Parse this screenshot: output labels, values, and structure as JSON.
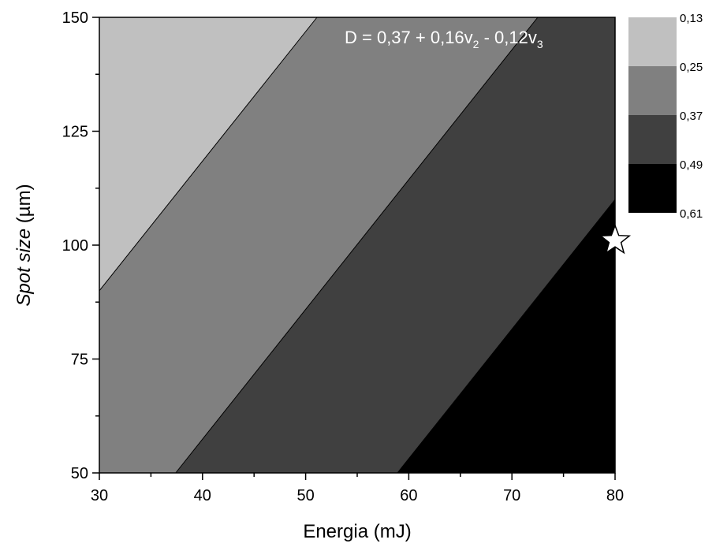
{
  "chart_data": {
    "type": "contour",
    "xlabel": "Energia (mJ)",
    "ylabel_italic": "Spot size",
    "ylabel_unit": " (µm)",
    "xlim": [
      30,
      80
    ],
    "ylim": [
      50,
      150
    ],
    "xticks": [
      "30",
      "40",
      "50",
      "60",
      "70",
      "80"
    ],
    "yticks": [
      "50",
      "75",
      "100",
      "125",
      "150"
    ],
    "annotation": {
      "main": "D = 0,37 + 0,16v",
      "sub1": "2",
      "mid": " - 0,12v",
      "sub2": "3"
    },
    "legend": {
      "levels": [
        "0,13",
        "0,25",
        "0,37",
        "0,49",
        "0,61"
      ],
      "colors": [
        "#c0c0c0",
        "#808080",
        "#404040",
        "#000000"
      ]
    },
    "regions": [
      {
        "color": "#c0c0c0",
        "polygon": [
          [
            30,
            90
          ],
          [
            30,
            150
          ],
          [
            51.1,
            150
          ]
        ]
      },
      {
        "color": "#808080",
        "polygon": [
          [
            30,
            50
          ],
          [
            37.4,
            50
          ],
          [
            72.5,
            150
          ],
          [
            51.1,
            150
          ],
          [
            30,
            90
          ]
        ]
      },
      {
        "color": "#404040",
        "polygon": [
          [
            37.4,
            50
          ],
          [
            58.9,
            50
          ],
          [
            80,
            110
          ],
          [
            80,
            150
          ],
          [
            72.5,
            150
          ]
        ]
      },
      {
        "color": "#000000",
        "polygon": [
          [
            58.9,
            50
          ],
          [
            80,
            50
          ],
          [
            80,
            110
          ]
        ]
      }
    ],
    "contour_lines": [
      [
        [
          30,
          90
        ],
        [
          51.1,
          150
        ]
      ],
      [
        [
          37.4,
          50
        ],
        [
          72.5,
          150
        ]
      ],
      [
        [
          58.9,
          50
        ],
        [
          80,
          110
        ]
      ]
    ],
    "marker": {
      "shape": "star",
      "x": 80,
      "y": 101
    }
  }
}
